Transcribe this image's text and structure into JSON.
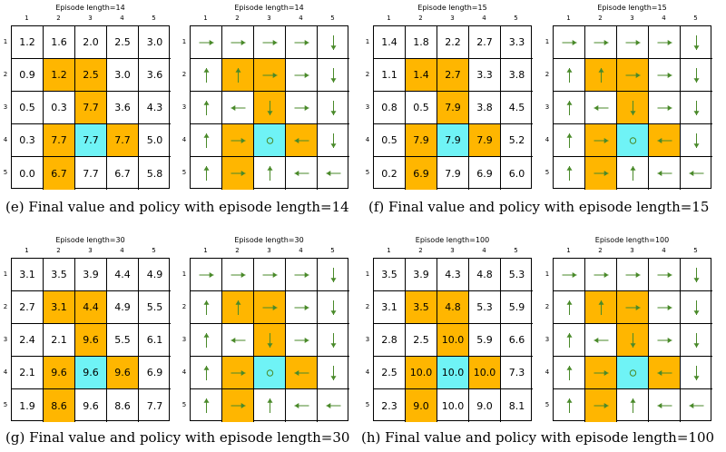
{
  "colors": {
    "wall": "#ffb600",
    "goal": "#6ff3f6",
    "arrow": "#4a8a2a"
  },
  "col_labels": [
    "1",
    "2",
    "3",
    "4",
    "5"
  ],
  "row_labels": [
    "1",
    "2",
    "3",
    "4",
    "5"
  ],
  "walls": [
    [
      1,
      1
    ],
    [
      1,
      2
    ],
    [
      2,
      2
    ],
    [
      3,
      1
    ],
    [
      3,
      3
    ],
    [
      4,
      1
    ]
  ],
  "goal": [
    3,
    2
  ],
  "policy": [
    [
      "right",
      "right",
      "right",
      "right",
      "down"
    ],
    [
      "up",
      "up",
      "right",
      "right",
      "down"
    ],
    [
      "up",
      "left",
      "down",
      "right",
      "down"
    ],
    [
      "up",
      "right",
      "goal",
      "left",
      "down"
    ],
    [
      "up",
      "right",
      "up",
      "left",
      "left"
    ]
  ],
  "panels": [
    {
      "title": "Episode length=14",
      "values": [
        [
          "1.2",
          "1.6",
          "2.0",
          "2.5",
          "3.0"
        ],
        [
          "0.9",
          "1.2",
          "2.5",
          "3.0",
          "3.6"
        ],
        [
          "0.5",
          "0.3",
          "7.7",
          "3.6",
          "4.3"
        ],
        [
          "0.3",
          "7.7",
          "7.7",
          "7.7",
          "5.0"
        ],
        [
          "0.0",
          "6.7",
          "7.7",
          "6.7",
          "5.8"
        ]
      ]
    },
    {
      "title": "Episode length=15",
      "values": [
        [
          "1.4",
          "1.8",
          "2.2",
          "2.7",
          "3.3"
        ],
        [
          "1.1",
          "1.4",
          "2.7",
          "3.3",
          "3.8"
        ],
        [
          "0.8",
          "0.5",
          "7.9",
          "3.8",
          "4.5"
        ],
        [
          "0.5",
          "7.9",
          "7.9",
          "7.9",
          "5.2"
        ],
        [
          "0.2",
          "6.9",
          "7.9",
          "6.9",
          "6.0"
        ]
      ]
    },
    {
      "title": "Episode length=30",
      "values": [
        [
          "3.1",
          "3.5",
          "3.9",
          "4.4",
          "4.9"
        ],
        [
          "2.7",
          "3.1",
          "4.4",
          "4.9",
          "5.5"
        ],
        [
          "2.4",
          "2.1",
          "9.6",
          "5.5",
          "6.1"
        ],
        [
          "2.1",
          "9.6",
          "9.6",
          "9.6",
          "6.9"
        ],
        [
          "1.9",
          "8.6",
          "9.6",
          "8.6",
          "7.7"
        ]
      ]
    },
    {
      "title": "Episode length=100",
      "values": [
        [
          "3.5",
          "3.9",
          "4.3",
          "4.8",
          "5.3"
        ],
        [
          "3.1",
          "3.5",
          "4.8",
          "5.3",
          "5.9"
        ],
        [
          "2.8",
          "2.5",
          "10.0",
          "5.9",
          "6.6"
        ],
        [
          "2.5",
          "10.0",
          "10.0",
          "10.0",
          "7.3"
        ],
        [
          "2.3",
          "9.0",
          "10.0",
          "9.0",
          "8.1"
        ]
      ]
    }
  ],
  "captions": [
    "(e) Final value and policy with episode length=14",
    "(f) Final value and policy with episode length=15",
    "(g) Final value and policy with episode length=30",
    "(h) Final value and policy with episode length=100"
  ]
}
